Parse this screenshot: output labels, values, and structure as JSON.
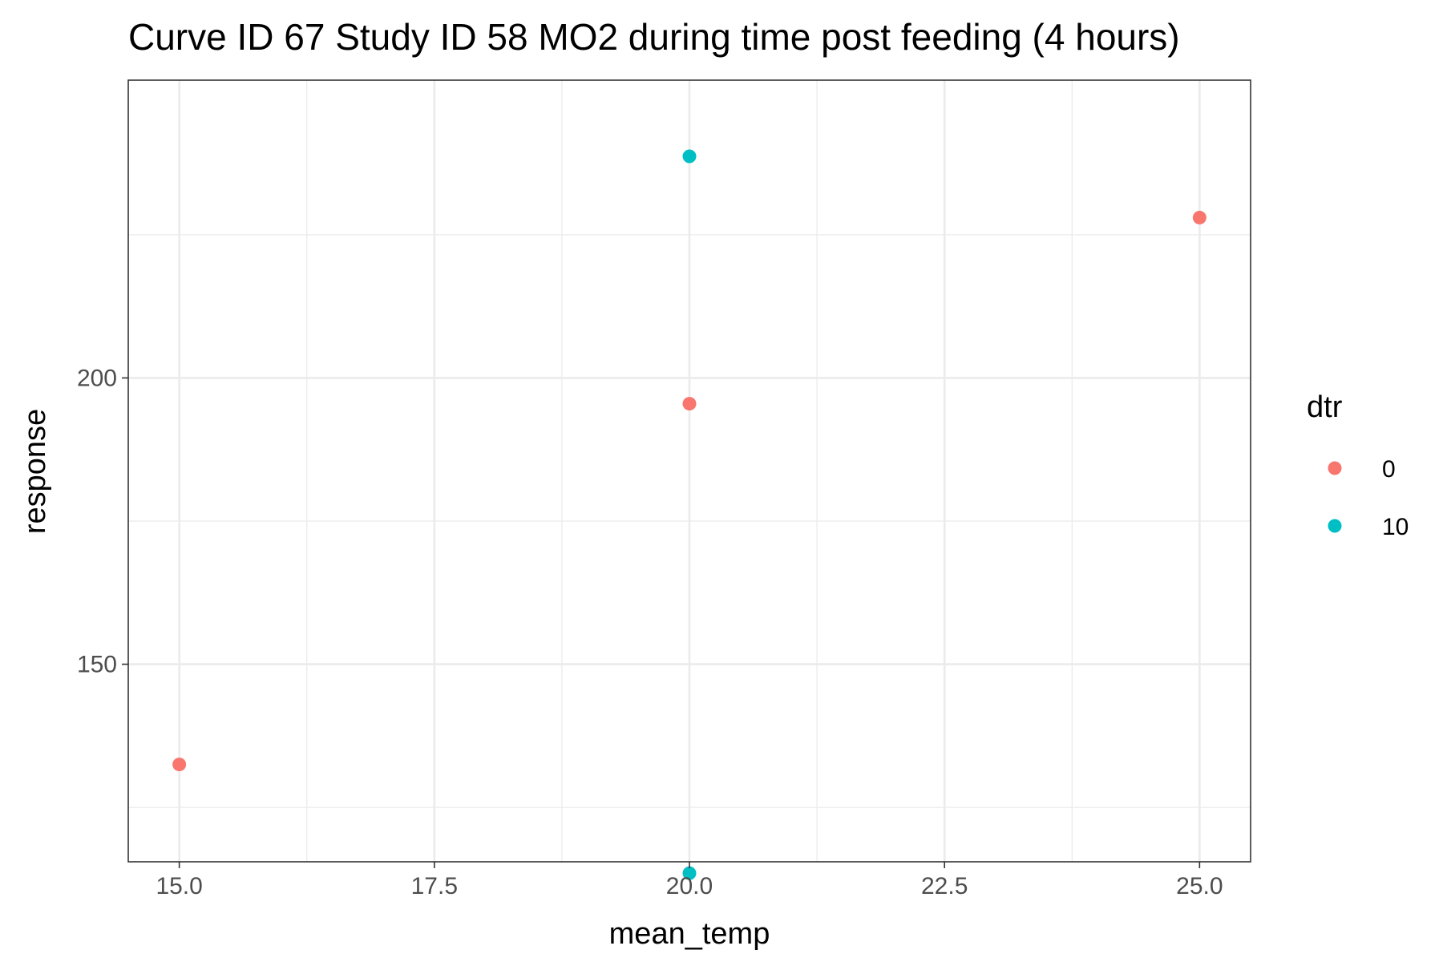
{
  "chart_data": {
    "type": "scatter",
    "title": "Curve ID 67 Study ID 58 MO2 during time post feeding (4 hours)",
    "xlabel": "mean_temp",
    "ylabel": "response",
    "xlim": [
      14.5,
      25.5
    ],
    "ylim": [
      115.5,
      252
    ],
    "x_ticks": [
      15.0,
      17.5,
      20.0,
      22.5,
      25.0
    ],
    "x_tick_labels": [
      "15.0",
      "17.5",
      "20.0",
      "22.5",
      "25.0"
    ],
    "y_ticks": [
      150,
      200
    ],
    "y_tick_labels": [
      "150",
      "200"
    ],
    "grid": true,
    "legend": {
      "title": "dtr",
      "placement": "right"
    },
    "series": [
      {
        "name": "0",
        "color": "#F8766D",
        "points": [
          {
            "x": 15.0,
            "y": 132.5
          },
          {
            "x": 20.0,
            "y": 195.5
          },
          {
            "x": 25.0,
            "y": 228
          }
        ]
      },
      {
        "name": "10",
        "color": "#00BFC4",
        "points": [
          {
            "x": 20.0,
            "y": 238.7
          },
          {
            "x": 20.0,
            "y": 113.5
          }
        ]
      }
    ]
  }
}
